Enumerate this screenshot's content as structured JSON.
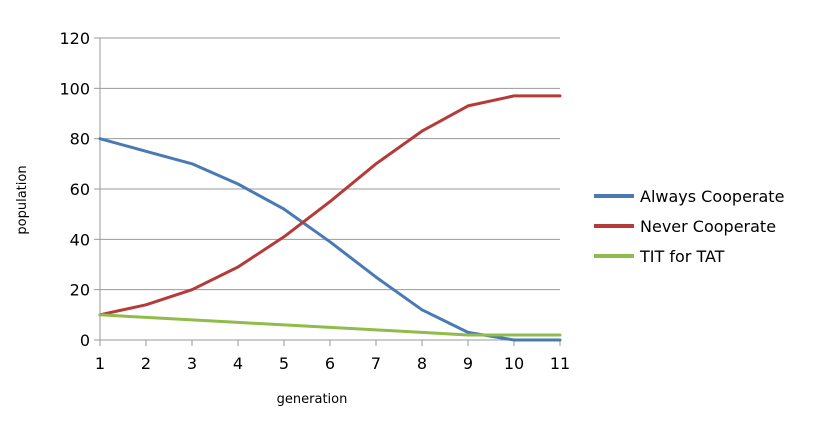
{
  "chart_data": {
    "type": "line",
    "title": "",
    "xlabel": "generation",
    "ylabel": "population",
    "x": [
      1,
      2,
      3,
      4,
      5,
      6,
      7,
      8,
      9,
      10,
      11
    ],
    "xlim": [
      1,
      11
    ],
    "ylim": [
      0,
      120
    ],
    "yticks": [
      0,
      20,
      40,
      60,
      80,
      100,
      120
    ],
    "grid": "horizontal",
    "legend_position": "right",
    "series": [
      {
        "name": "Always Cooperate",
        "color": "#4a7ab5",
        "values": [
          80,
          75,
          70,
          62,
          52,
          39,
          25,
          12,
          3,
          0,
          0
        ]
      },
      {
        "name": "Never Cooperate",
        "color": "#b53a3a",
        "values": [
          10,
          14,
          20,
          29,
          41,
          55,
          70,
          83,
          93,
          97,
          97
        ]
      },
      {
        "name": "TIT for TAT",
        "color": "#8fbc4a",
        "values": [
          10,
          9,
          8,
          7,
          6,
          5,
          4,
          3,
          2,
          2,
          2
        ]
      }
    ]
  }
}
